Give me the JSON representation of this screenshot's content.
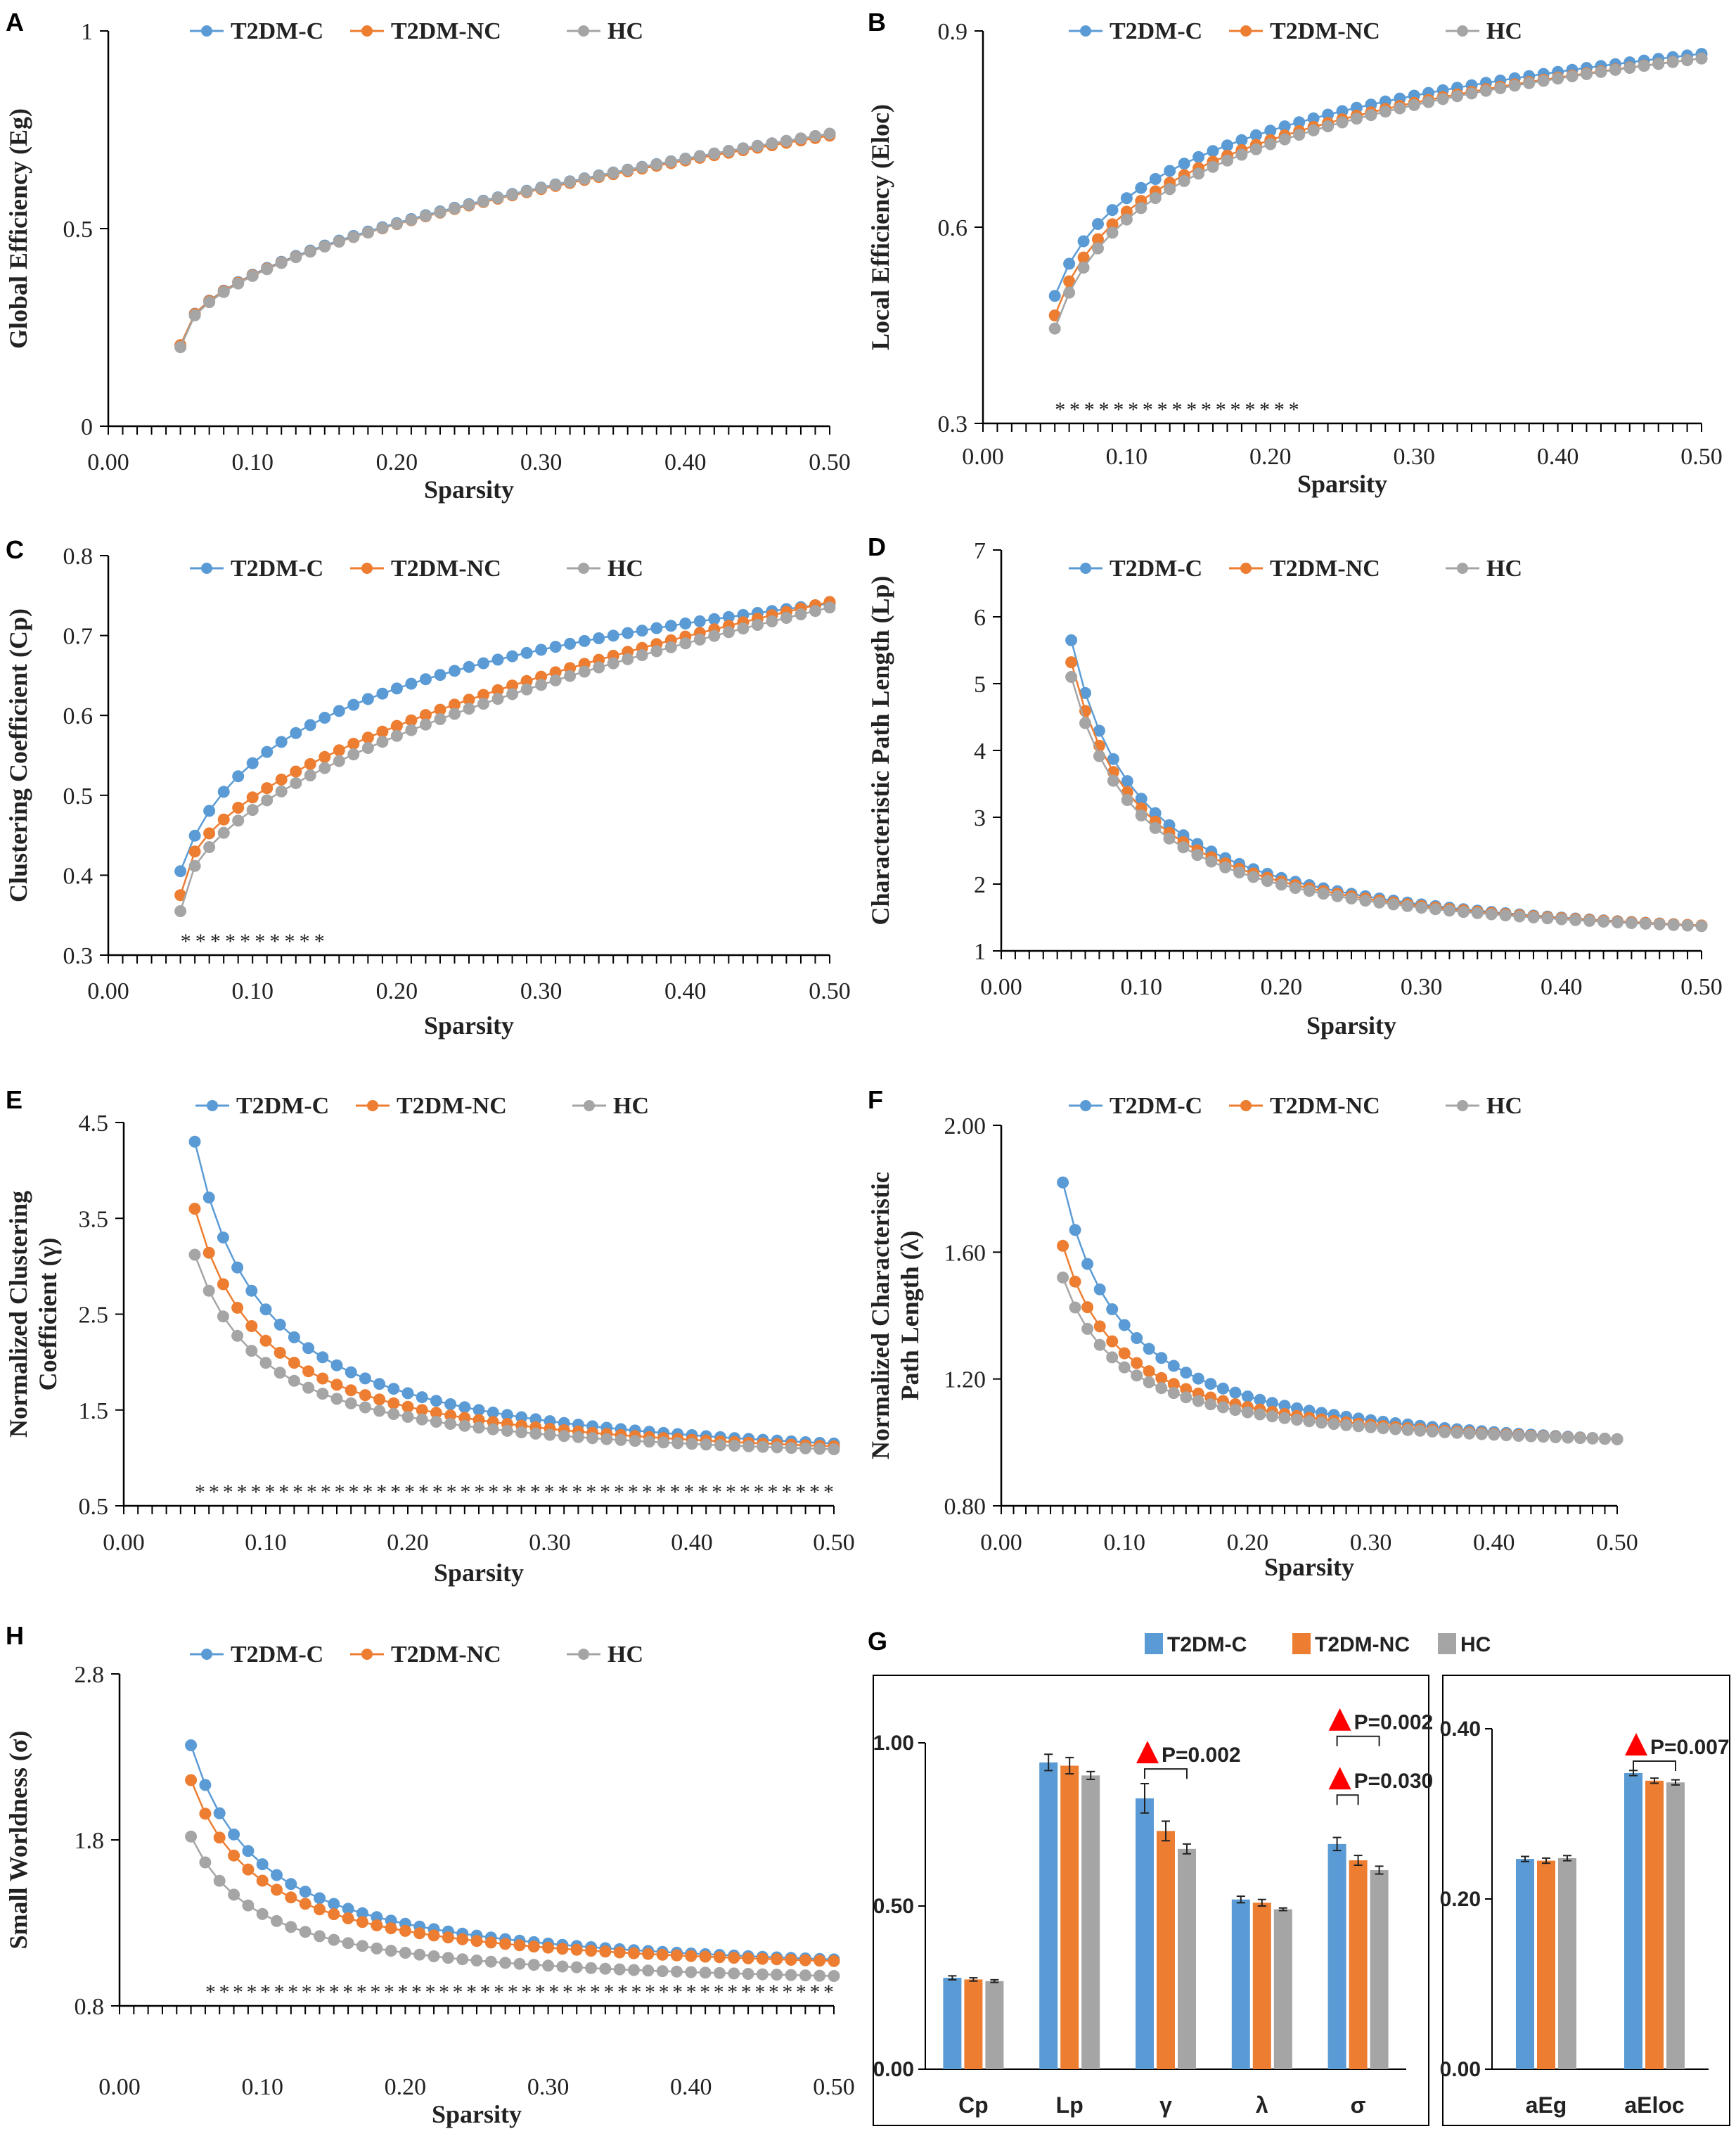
{
  "colors": {
    "t2dm_c": "#5B9BD5",
    "t2dm_nc": "#ED7D31",
    "hc": "#A5A5A5",
    "axis": "#000000",
    "marker": "#FF0000"
  },
  "legend": {
    "items": [
      "T2DM-C",
      "T2DM-NC",
      "HC"
    ]
  },
  "panels": {
    "A": {
      "letter": "A",
      "ylabel": "Global Efficiency (Eg)",
      "xlabel": "Sparsity"
    },
    "B": {
      "letter": "B",
      "ylabel": "Local Efficiency (Eloc)",
      "xlabel": "Sparsity"
    },
    "C": {
      "letter": "C",
      "ylabel": "Clustering Coefficient (Cp)",
      "xlabel": "Sparsity"
    },
    "D": {
      "letter": "D",
      "ylabel": "Characteristic Path Length (Lp)",
      "xlabel": "Sparsity"
    },
    "E": {
      "letter": "E",
      "ylabel1": "Normalized Clustering",
      "ylabel2": "Coefficient (γ)",
      "xlabel": "Sparsity"
    },
    "F": {
      "letter": "F",
      "ylabel1": "Normalized Characteristic",
      "ylabel2": "Path Length (λ)",
      "xlabel": "Sparsity"
    },
    "H": {
      "letter": "H",
      "ylabel": "Small Worldness (σ)",
      "xlabel": "Sparsity"
    },
    "G": {
      "letter": "G"
    }
  },
  "chart_data": [
    {
      "id": "A",
      "type": "line",
      "title": "",
      "xlabel": "Sparsity",
      "ylabel": "Global Efficiency (Eg)",
      "xlim": [
        0,
        0.5
      ],
      "ylim": [
        0,
        1
      ],
      "xticks": [
        "0.00",
        "0.10",
        "0.20",
        "0.30",
        "0.40",
        "0.50"
      ],
      "yticks": [
        "0",
        "0.5",
        "1"
      ],
      "x": {
        "start": 0.05,
        "end": 0.5,
        "step": 0.01
      },
      "series": [
        {
          "name": "T2DM-C",
          "start": 0.205,
          "end": 0.74,
          "shape": "sqrt"
        },
        {
          "name": "T2DM-NC",
          "start": 0.205,
          "end": 0.735,
          "shape": "sqrt"
        },
        {
          "name": "HC",
          "start": 0.2,
          "end": 0.74,
          "shape": "sqrt"
        }
      ],
      "stars": "",
      "legend_position": "top"
    },
    {
      "id": "B",
      "type": "line",
      "title": "",
      "xlabel": "Sparsity",
      "ylabel": "Local Efficiency (Eloc)",
      "xlim": [
        0,
        0.5
      ],
      "ylim": [
        0.3,
        0.9
      ],
      "xticks": [
        "0.00",
        "0.10",
        "0.20",
        "0.30",
        "0.40",
        "0.50"
      ],
      "yticks": [
        "0.3",
        "0.6",
        "0.9"
      ],
      "x": {
        "start": 0.05,
        "end": 0.5,
        "step": 0.01
      },
      "series": [
        {
          "name": "T2DM-C",
          "start": 0.495,
          "end": 0.865,
          "shape": "log"
        },
        {
          "name": "T2DM-NC",
          "start": 0.465,
          "end": 0.858,
          "shape": "log"
        },
        {
          "name": "HC",
          "start": 0.445,
          "end": 0.858,
          "shape": "log"
        }
      ],
      "stars": "*****************",
      "stars_range": [
        0.05,
        0.22
      ],
      "legend_position": "top"
    },
    {
      "id": "C",
      "type": "line",
      "title": "",
      "xlabel": "Sparsity",
      "ylabel": "Clustering Coefficient (Cp)",
      "xlim": [
        0,
        0.5
      ],
      "ylim": [
        0.3,
        0.8
      ],
      "xticks": [
        "0.00",
        "0.10",
        "0.20",
        "0.30",
        "0.40",
        "0.50"
      ],
      "yticks": [
        "0.3",
        "0.4",
        "0.5",
        "0.6",
        "0.7",
        "0.8"
      ],
      "x": {
        "start": 0.05,
        "end": 0.5,
        "step": 0.01
      },
      "series": [
        {
          "name": "T2DM-C",
          "start": 0.405,
          "end": 0.74,
          "shape": "log"
        },
        {
          "name": "T2DM-NC",
          "start": 0.375,
          "end": 0.742,
          "shape": "sqrt"
        },
        {
          "name": "HC",
          "start": 0.355,
          "end": 0.735,
          "shape": "sqrt"
        }
      ],
      "stars": "**********",
      "stars_range": [
        0.05,
        0.15
      ],
      "legend_position": "top"
    },
    {
      "id": "D",
      "type": "line",
      "title": "",
      "xlabel": "Sparsity",
      "ylabel": "Characteristic Path Length (Lp)",
      "xlim": [
        0,
        0.5
      ],
      "ylim": [
        1,
        7
      ],
      "xticks": [
        "0.00",
        "0.10",
        "0.20",
        "0.30",
        "0.40",
        "0.50"
      ],
      "yticks": [
        "1",
        "2",
        "3",
        "4",
        "5",
        "6",
        "7"
      ],
      "x": {
        "start": 0.05,
        "end": 0.5,
        "step": 0.01
      },
      "series": [
        {
          "name": "T2DM-C",
          "start": 5.65,
          "end": 1.38,
          "shape": "decay"
        },
        {
          "name": "T2DM-NC",
          "start": 5.32,
          "end": 1.38,
          "shape": "decay"
        },
        {
          "name": "HC",
          "start": 5.1,
          "end": 1.37,
          "shape": "decay"
        }
      ],
      "stars": "",
      "legend_position": "top"
    },
    {
      "id": "E",
      "type": "line",
      "title": "",
      "xlabel": "Sparsity",
      "ylabel": "Normalized Clustering Coefficient (γ)",
      "xlim": [
        0,
        0.5
      ],
      "ylim": [
        0.5,
        4.5
      ],
      "xticks": [
        "0.00",
        "0.10",
        "0.20",
        "0.30",
        "0.40",
        "0.50"
      ],
      "yticks": [
        "0.5",
        "1.5",
        "2.5",
        "3.5",
        "4.5"
      ],
      "x": {
        "start": 0.05,
        "end": 0.5,
        "step": 0.01
      },
      "series": [
        {
          "name": "T2DM-C",
          "start": 4.3,
          "end": 1.15,
          "shape": "decay"
        },
        {
          "name": "T2DM-NC",
          "start": 3.6,
          "end": 1.12,
          "shape": "decay"
        },
        {
          "name": "HC",
          "start": 3.12,
          "end": 1.09,
          "shape": "decay"
        }
      ],
      "stars": "**********************************************",
      "stars_range": [
        0.05,
        0.5
      ],
      "legend_position": "top"
    },
    {
      "id": "F",
      "type": "line",
      "title": "",
      "xlabel": "Sparsity",
      "ylabel": "Normalized Characteristic Path Length (λ)",
      "xlim": [
        0,
        0.5
      ],
      "ylim": [
        0.8,
        2.0
      ],
      "xticks": [
        "0.00",
        "0.10",
        "0.20",
        "0.30",
        "0.40",
        "0.50"
      ],
      "yticks": [
        "0.80",
        "1.20",
        "1.60",
        "2.00"
      ],
      "x": {
        "start": 0.05,
        "end": 0.5,
        "step": 0.01
      },
      "series": [
        {
          "name": "T2DM-C",
          "start": 1.82,
          "end": 1.01,
          "shape": "decay"
        },
        {
          "name": "T2DM-NC",
          "start": 1.62,
          "end": 1.01,
          "shape": "decay"
        },
        {
          "name": "HC",
          "start": 1.52,
          "end": 1.01,
          "shape": "decay"
        }
      ],
      "stars": "",
      "legend_position": "top"
    },
    {
      "id": "H",
      "type": "line",
      "title": "",
      "xlabel": "Sparsity",
      "ylabel": "Small Worldness (σ)",
      "xlim": [
        0,
        0.5
      ],
      "ylim": [
        0.8,
        2.8
      ],
      "xticks": [
        "0.00",
        "0.10",
        "0.20",
        "0.30",
        "0.40",
        "0.50"
      ],
      "yticks": [
        "0.8",
        "1.8",
        "2.8"
      ],
      "x": {
        "start": 0.05,
        "end": 0.5,
        "step": 0.01
      },
      "series": [
        {
          "name": "T2DM-C",
          "start": 2.37,
          "end": 1.08,
          "shape": "decay"
        },
        {
          "name": "T2DM-NC",
          "start": 2.16,
          "end": 1.07,
          "shape": "decay"
        },
        {
          "name": "HC",
          "start": 1.82,
          "end": 0.98,
          "shape": "decay"
        }
      ],
      "stars": "**********************************************",
      "stars_range": [
        0.06,
        0.5
      ],
      "legend_position": "top"
    },
    {
      "id": "G1",
      "type": "bar",
      "title": "",
      "categories": [
        "Cp",
        "Lp",
        "γ",
        "λ",
        "σ"
      ],
      "ylim": [
        0,
        1
      ],
      "yticks": [
        "0.00",
        "0.50",
        "1.00"
      ],
      "series": [
        {
          "name": "T2DM-C",
          "values": [
            0.28,
            0.94,
            0.83,
            0.52,
            0.69
          ],
          "errors": [
            0.006,
            0.025,
            0.045,
            0.01,
            0.02
          ]
        },
        {
          "name": "T2DM-NC",
          "values": [
            0.275,
            0.93,
            0.73,
            0.51,
            0.64
          ],
          "errors": [
            0.005,
            0.025,
            0.03,
            0.01,
            0.015
          ]
        },
        {
          "name": "HC",
          "values": [
            0.27,
            0.9,
            0.675,
            0.49,
            0.61
          ],
          "errors": [
            0.004,
            0.012,
            0.015,
            0.004,
            0.012
          ]
        }
      ],
      "annotations": [
        {
          "text": "P=0.002",
          "category": 2,
          "from": 0,
          "to": 2,
          "y": 0.92
        },
        {
          "text": "P=0.002",
          "category": 4,
          "from": 0,
          "to": 2,
          "y": 1.02
        },
        {
          "text": "P=0.030",
          "category": 4,
          "from": 0,
          "to": 1,
          "y": 0.84
        }
      ]
    },
    {
      "id": "G2",
      "type": "bar",
      "title": "",
      "categories": [
        "aEg",
        "aEloc"
      ],
      "ylim": [
        0,
        0.4
      ],
      "yticks": [
        "0.00",
        "0.20",
        "0.40"
      ],
      "series": [
        {
          "name": "T2DM-C",
          "values": [
            0.247,
            0.348
          ],
          "errors": [
            0.003,
            0.003
          ]
        },
        {
          "name": "T2DM-NC",
          "values": [
            0.245,
            0.339
          ],
          "errors": [
            0.003,
            0.003
          ]
        },
        {
          "name": "HC",
          "values": [
            0.248,
            0.337
          ],
          "errors": [
            0.003,
            0.003
          ]
        }
      ],
      "annotations": [
        {
          "text": "P=0.007",
          "category": 1,
          "from": 0,
          "to": 2,
          "y": 0.362
        }
      ]
    }
  ]
}
